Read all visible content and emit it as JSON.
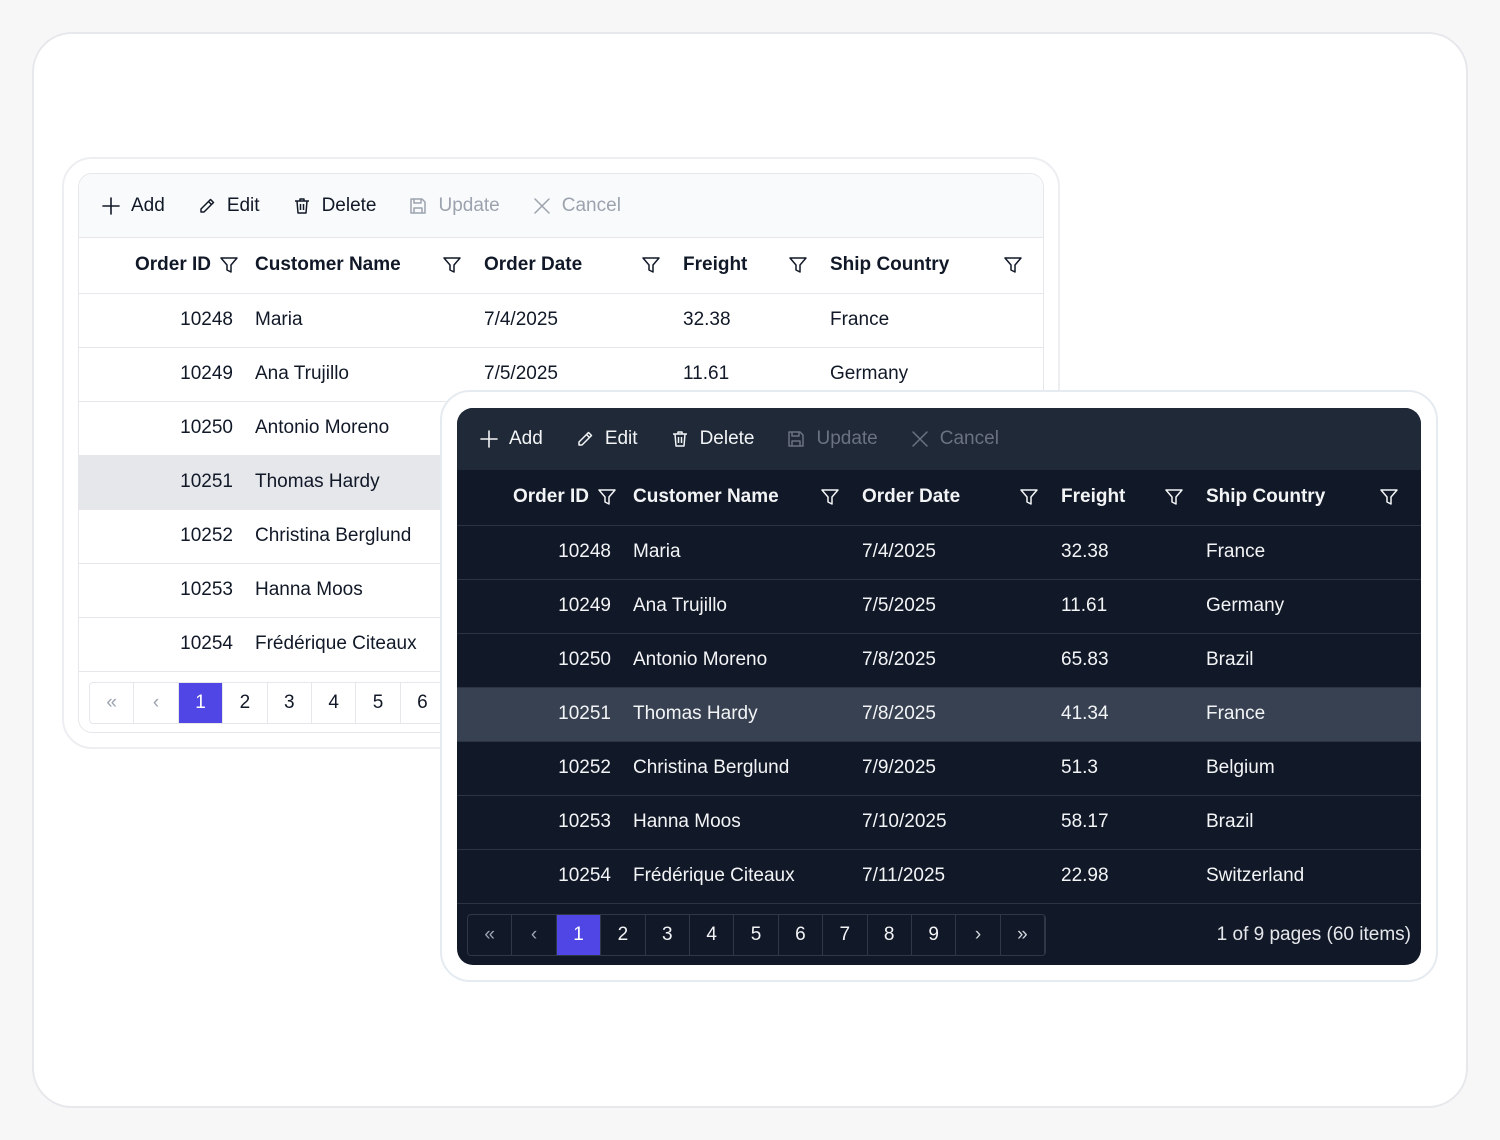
{
  "toolbar": {
    "add": "Add",
    "edit": "Edit",
    "delete": "Delete",
    "update": "Update",
    "cancel": "Cancel"
  },
  "columns": {
    "order_id": "Order ID",
    "customer_name": "Customer Name",
    "order_date": "Order Date",
    "freight": "Freight",
    "ship_country": "Ship Country"
  },
  "rows": [
    {
      "order_id": "10248",
      "customer_name": "Maria",
      "order_date": "7/4/2025",
      "freight": "32.38",
      "ship_country": "France"
    },
    {
      "order_id": "10249",
      "customer_name": "Ana Trujillo",
      "order_date": "7/5/2025",
      "freight": "11.61",
      "ship_country": "Germany"
    },
    {
      "order_id": "10250",
      "customer_name": "Antonio Moreno",
      "order_date": "7/8/2025",
      "freight": "65.83",
      "ship_country": "Brazil"
    },
    {
      "order_id": "10251",
      "customer_name": "Thomas Hardy",
      "order_date": "7/8/2025",
      "freight": "41.34",
      "ship_country": "France"
    },
    {
      "order_id": "10252",
      "customer_name": "Christina Berglund",
      "order_date": "7/9/2025",
      "freight": "51.3",
      "ship_country": "Belgium"
    },
    {
      "order_id": "10253",
      "customer_name": "Hanna Moos",
      "order_date": "7/10/2025",
      "freight": "58.17",
      "ship_country": "Brazil"
    },
    {
      "order_id": "10254",
      "customer_name": "Frédérique Citeaux",
      "order_date": "7/11/2025",
      "freight": "22.98",
      "ship_country": "Switzerland"
    }
  ],
  "selected_row": "10251",
  "pager": {
    "first": "«",
    "prev": "‹",
    "next": "›",
    "last": "»",
    "pages": [
      "1",
      "2",
      "3",
      "4",
      "5",
      "6",
      "7",
      "8",
      "9"
    ],
    "current": "1",
    "info": "1 of 9 pages (60 items)"
  },
  "colors": {
    "accent": "#4f46e5",
    "dark_bg": "#111827",
    "dark_toolbar": "#1f2937",
    "light_selected": "#e5e7eb",
    "dark_selected": "#374151"
  },
  "icons": {
    "add": "plus-icon",
    "edit": "pencil-icon",
    "delete": "trash-icon",
    "update": "save-icon",
    "cancel": "close-icon",
    "filter": "filter-icon"
  }
}
